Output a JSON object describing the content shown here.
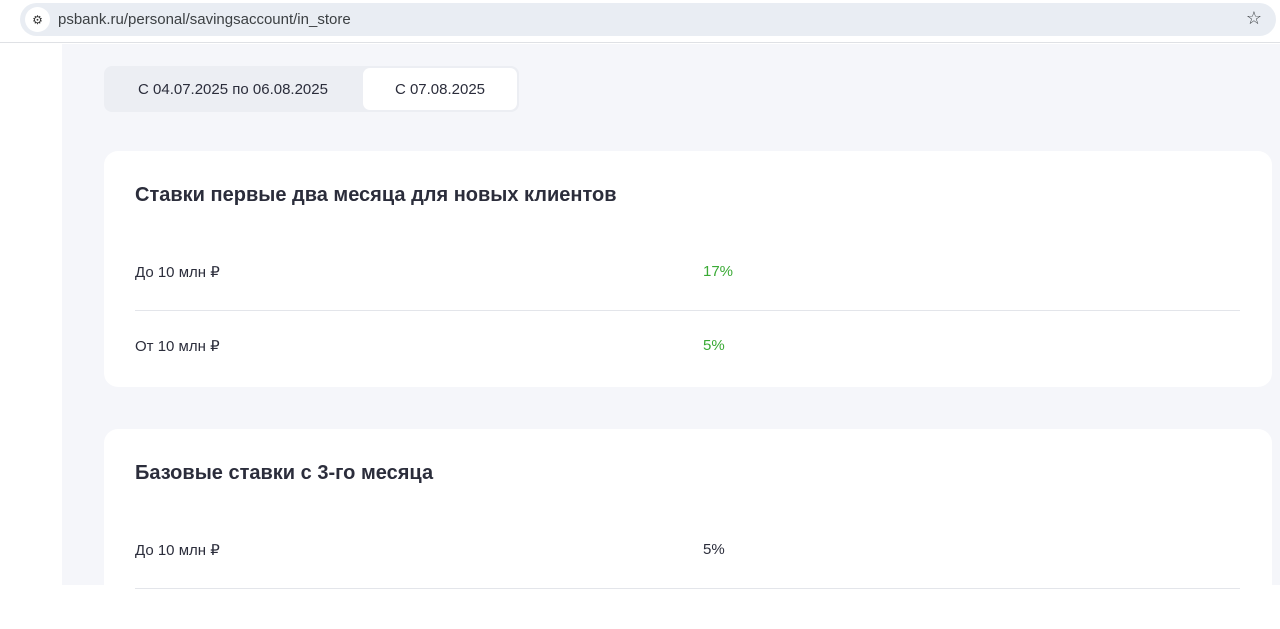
{
  "browser": {
    "url": "psbank.ru/personal/savingsaccount/in_store",
    "site_icon": "tune-icon",
    "bookmark_icon": "star-icon"
  },
  "tabs": [
    {
      "label": "С 04.07.2025 по 06.08.2025",
      "active": false
    },
    {
      "label": "С 07.08.2025",
      "active": true
    }
  ],
  "sections": [
    {
      "title": "Ставки первые два месяца для новых клиентов",
      "rows": [
        {
          "label": "До 10 млн ₽",
          "value": "17%"
        },
        {
          "label": "От 10 млн ₽",
          "value": "5%"
        }
      ],
      "value_color": "#3aaa35"
    },
    {
      "title": "Базовые ставки с 3-го месяца",
      "rows": [
        {
          "label": "До 10 млн ₽",
          "value": "5%"
        }
      ]
    }
  ]
}
